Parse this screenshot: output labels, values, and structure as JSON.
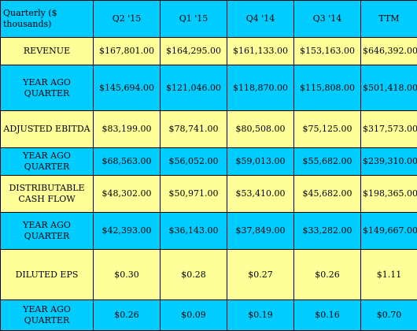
{
  "table": {
    "corner_label": "Quarterly ($ thousands)",
    "columns": [
      "Q2 '15",
      "Q1 '15",
      "Q4 '14",
      "Q3 '14",
      "TTM"
    ],
    "rows": [
      {
        "label": "REVENUE",
        "values": [
          "$167,801.00",
          "$164,295.00",
          "$161,133.00",
          "$153,163.00",
          "$646,392.00"
        ]
      },
      {
        "label": "YEAR AGO QUARTER",
        "values": [
          "$145,694.00",
          "$121,046.00",
          "$118,870.00",
          "$115,808.00",
          "$501,418.00"
        ]
      },
      {
        "label": "ADJUSTED EBITDA",
        "values": [
          "$83,199.00",
          "$78,741.00",
          "$80,508.00",
          "$75,125.00",
          "$317,573.00"
        ]
      },
      {
        "label": "YEAR AGO QUARTER",
        "values": [
          "$68,563.00",
          "$56,052.00",
          "$59,013.00",
          "$55,682.00",
          "$239,310.00"
        ]
      },
      {
        "label": "DISTRIBUTABLE CASH FLOW",
        "values": [
          "$48,302.00",
          "$50,971.00",
          "$53,410.00",
          "$45,682.00",
          "$198,365.00"
        ]
      },
      {
        "label": "YEAR AGO QUARTER",
        "values": [
          "$42,393.00",
          "$36,143.00",
          "$37,849.00",
          "$33,282.00",
          "$149,667.00"
        ]
      },
      {
        "label": "DILUTED EPS",
        "values": [
          "$0.30",
          "$0.28",
          "$0.27",
          "$0.26",
          "$1.11"
        ]
      },
      {
        "label": "YEAR AGO QUARTER",
        "values": [
          "$0.26",
          "$0.09",
          "$0.19",
          "$0.16",
          "$0.70"
        ]
      }
    ],
    "colors": {
      "header": "#00ccff",
      "current_row": "#ffff99",
      "year_ago_row": "#00ccff",
      "border": "#000000"
    }
  }
}
